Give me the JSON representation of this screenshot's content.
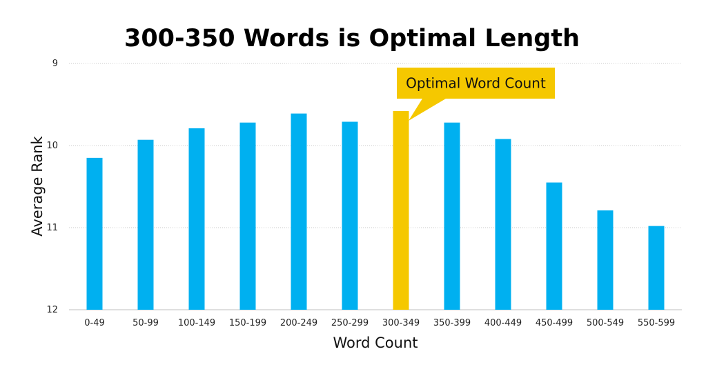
{
  "chart_data": {
    "type": "bar",
    "title": "300-350 Words is Optimal Length",
    "xlabel": "Word Count",
    "ylabel": "Average Rank",
    "categories": [
      "0-49",
      "50-99",
      "100-149",
      "150-199",
      "200-249",
      "250-299",
      "300-349",
      "350-399",
      "400-449",
      "450-499",
      "500-549",
      "550-599"
    ],
    "values": [
      10.15,
      9.93,
      9.79,
      9.72,
      9.61,
      9.71,
      9.58,
      9.72,
      9.92,
      10.45,
      10.79,
      10.98
    ],
    "y_ticks": [
      "9",
      "10",
      "11",
      "12"
    ],
    "ylim": [
      9,
      12
    ],
    "y_axis_inverted": true,
    "highlight_index": 6,
    "annotation": "Optimal Word Count",
    "grid": true,
    "legend": "none",
    "colors": {
      "bar": "#00B0F0",
      "highlight": "#F5C800",
      "grid": "#C8C8C8"
    }
  }
}
